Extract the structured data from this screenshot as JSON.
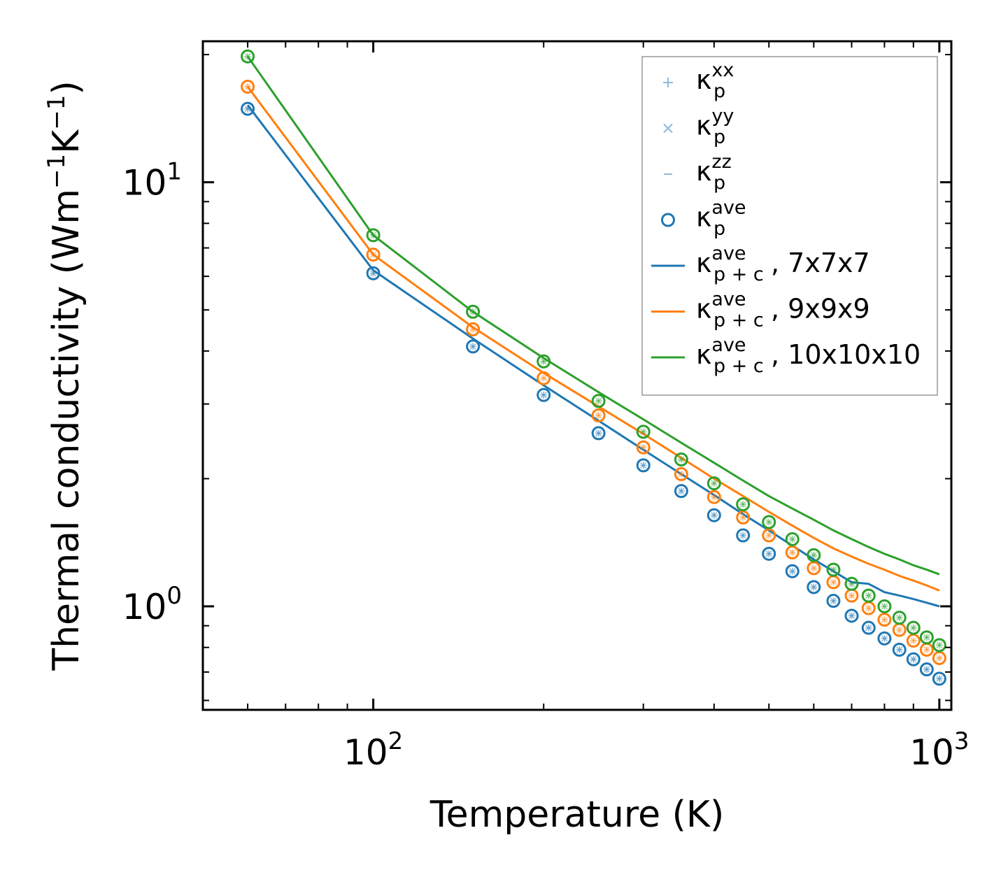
{
  "chart_data": {
    "type": "line",
    "xscale": "log",
    "yscale": "log",
    "xlabel": "Temperature (K)",
    "ylabel": {
      "base": "Thermal conductivity (Wm",
      "sup1": "−1",
      "mid": "K",
      "sup2": "−1",
      "end": ")"
    },
    "xlim": [
      50,
      1050
    ],
    "ylim": [
      0.57,
      21.5
    ],
    "x_ticks": [
      {
        "value": 100,
        "base": "10",
        "exp": "2"
      },
      {
        "value": 1000,
        "base": "10",
        "exp": "3"
      }
    ],
    "y_ticks": [
      {
        "value": 1,
        "base": "10",
        "exp": "0"
      },
      {
        "value": 10,
        "base": "10",
        "exp": "1"
      }
    ],
    "x": [
      60,
      100,
      150,
      200,
      250,
      300,
      350,
      400,
      450,
      500,
      550,
      600,
      650,
      700,
      750,
      800,
      850,
      900,
      950,
      1000
    ],
    "series": [
      {
        "name": "7x7x7",
        "color": "#1f77b4",
        "points": [
          14.9,
          6.1,
          4.1,
          3.15,
          2.56,
          2.15,
          1.87,
          1.64,
          1.47,
          1.33,
          1.21,
          1.11,
          1.03,
          0.95,
          0.89,
          0.84,
          0.79,
          0.75,
          0.71,
          0.675
        ],
        "line": [
          15.2,
          6.2,
          4.28,
          3.32,
          2.74,
          2.34,
          2.05,
          1.83,
          1.65,
          1.51,
          1.39,
          1.29,
          1.21,
          1.14,
          1.13,
          1.08,
          1.06,
          1.04,
          1.02,
          1.0
        ]
      },
      {
        "name": "9x9x9",
        "color": "#ff7f0e",
        "points": [
          16.8,
          6.75,
          4.5,
          3.45,
          2.82,
          2.37,
          2.05,
          1.81,
          1.62,
          1.47,
          1.34,
          1.23,
          1.14,
          1.06,
          0.99,
          0.93,
          0.88,
          0.83,
          0.79,
          0.755
        ],
        "line": [
          16.8,
          6.75,
          4.55,
          3.55,
          2.96,
          2.55,
          2.24,
          2.0,
          1.82,
          1.67,
          1.55,
          1.45,
          1.37,
          1.31,
          1.26,
          1.22,
          1.18,
          1.15,
          1.12,
          1.09
        ]
      },
      {
        "name": "10x10x10",
        "color": "#2ca02c",
        "points": [
          19.8,
          7.5,
          4.95,
          3.78,
          3.05,
          2.58,
          2.22,
          1.95,
          1.74,
          1.58,
          1.44,
          1.32,
          1.22,
          1.13,
          1.06,
          1.0,
          0.94,
          0.89,
          0.845,
          0.81
        ],
        "line": [
          19.8,
          7.5,
          4.95,
          3.85,
          3.2,
          2.76,
          2.43,
          2.18,
          1.98,
          1.82,
          1.7,
          1.6,
          1.51,
          1.44,
          1.38,
          1.33,
          1.29,
          1.25,
          1.22,
          1.19
        ]
      }
    ],
    "legend": {
      "placement": "top-right",
      "entries": [
        {
          "marker": "plus",
          "base": "κ",
          "sub": "p",
          "sup": "xx",
          "suffix": ""
        },
        {
          "marker": "cross",
          "base": "κ",
          "sub": "p",
          "sup": "yy",
          "suffix": ""
        },
        {
          "marker": "dash",
          "base": "κ",
          "sub": "p",
          "sup": "zz",
          "suffix": ""
        },
        {
          "marker": "circle",
          "base": "κ",
          "sub": "p",
          "sup": "ave",
          "suffix": ""
        },
        {
          "marker": "line",
          "series": 0,
          "base": "κ",
          "sub": "p + c",
          "sup": "ave",
          "suffix": ", 7x7x7"
        },
        {
          "marker": "line",
          "series": 1,
          "base": "κ",
          "sub": "p + c",
          "sup": "ave",
          "suffix": ", 9x9x9"
        },
        {
          "marker": "line",
          "series": 2,
          "base": "κ",
          "sub": "p + c",
          "sup": "ave",
          "suffix": ", 10x10x10"
        }
      ]
    }
  }
}
